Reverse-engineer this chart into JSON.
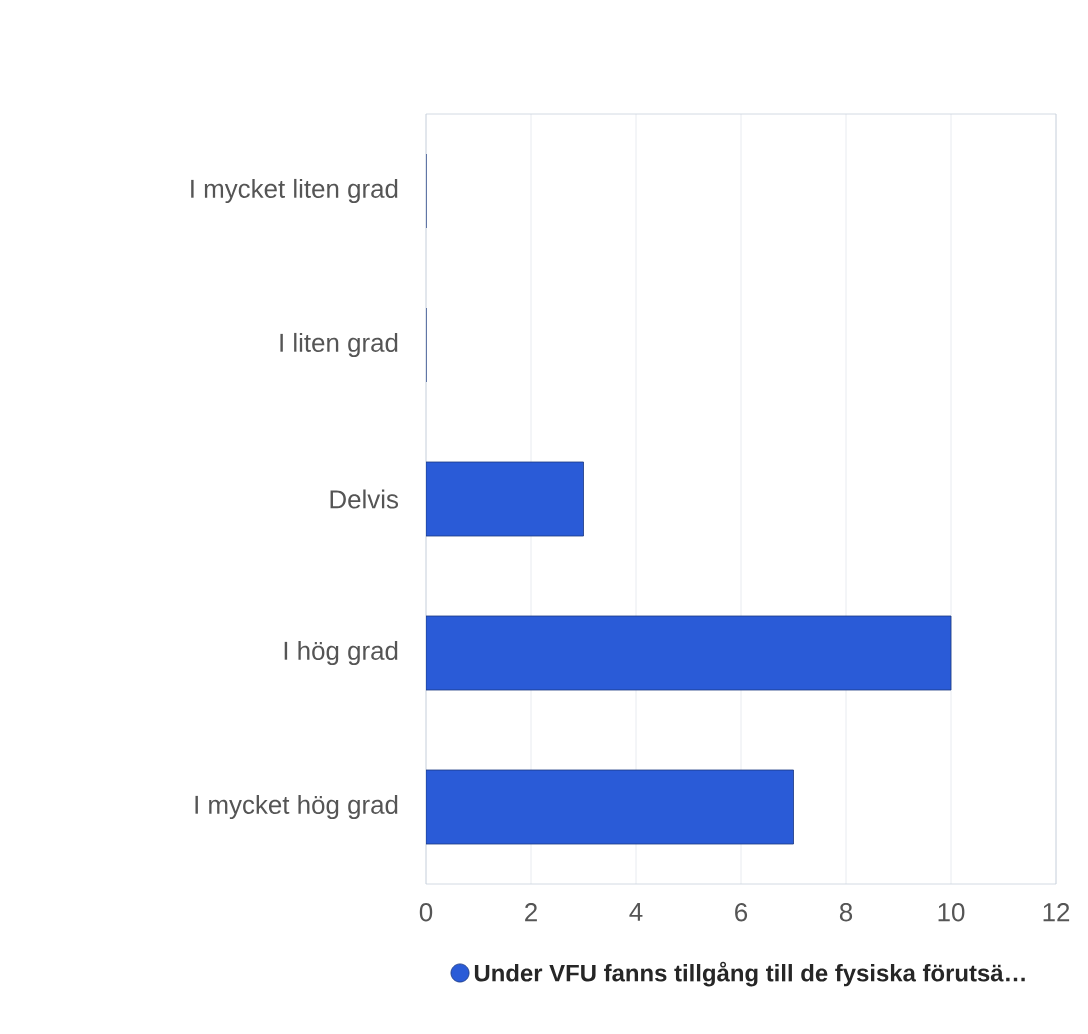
{
  "chart_data": {
    "type": "bar",
    "orientation": "horizontal",
    "categories": [
      "I mycket liten grad",
      "I liten grad",
      "Delvis",
      "I hög grad",
      "I mycket hög grad"
    ],
    "series": [
      {
        "name": "Under VFU fanns tillgång till de fysiska förutsä…",
        "color": "#2a5bd7",
        "values": [
          0,
          0,
          3,
          10,
          7
        ]
      }
    ],
    "xlim": [
      0,
      12
    ],
    "xticks": [
      0,
      2,
      4,
      6,
      8,
      10,
      12
    ],
    "grid": "x",
    "legend": "bottom"
  }
}
